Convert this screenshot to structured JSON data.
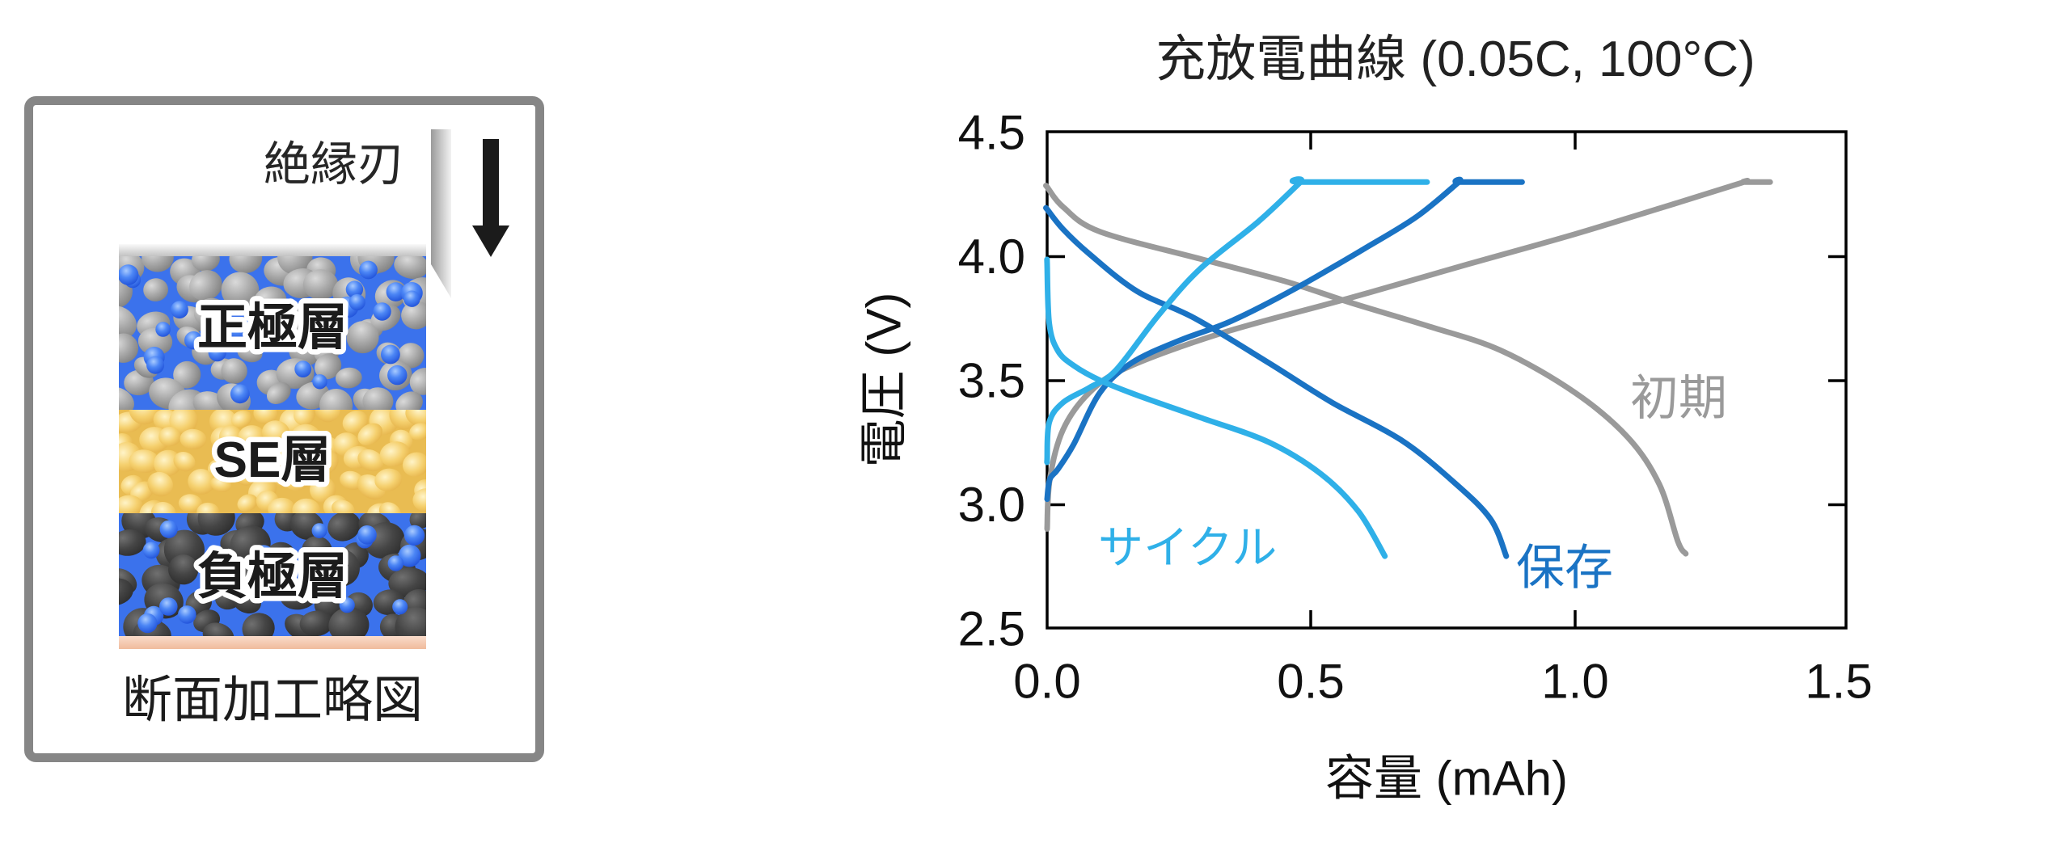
{
  "page": {
    "background": "#ffffff"
  },
  "diagram": {
    "blade_label": "絶縁刃",
    "caption": "断面加工略図",
    "box_border_color": "#868686",
    "blade_colors": [
      "#9a9a9a",
      "#cccccc",
      "#f2f2f2"
    ],
    "arrow_color": "#1b1b1b",
    "collector_colors": [
      "#fafafa",
      "#c2c2c2"
    ],
    "substrate_colors": [
      "#f9dccb",
      "#f0bb9c"
    ],
    "layers": {
      "cathode": {
        "label": "正極層",
        "bg": "#3B72EC",
        "particle": [
          "#dadada",
          "#a8a8a8",
          "#828282"
        ]
      },
      "se": {
        "label": "SE層",
        "bg": "#E9BC52",
        "particle": [
          "#fff4c8",
          "#f5d06e",
          "#e2ae44"
        ]
      },
      "anode": {
        "label": "負極層",
        "bg": "#3B72EC",
        "particle": [
          "#707070",
          "#454545",
          "#2f2f2f"
        ]
      }
    },
    "filler_sphere_colors": [
      "#a9cbff",
      "#4c86f5",
      "#1e4fd8"
    ]
  },
  "chart_data": {
    "type": "line",
    "title": "充放電曲線 (0.05C, 100°C)",
    "xlabel": "容量 (mAh)",
    "ylabel": "電圧 (V)",
    "xlim": [
      0,
      1.5
    ],
    "ylim": [
      2.5,
      4.5
    ],
    "grid": false,
    "legend_position": "in-plot-annotations",
    "xtick_labels": [
      "0.0",
      "0.5",
      "1.0",
      "1.5"
    ],
    "ytick_labels": [
      "2.5",
      "3.0",
      "3.5",
      "4.0",
      "4.5"
    ],
    "xticks": [
      0,
      0.5,
      1.0,
      1.5
    ],
    "yticks": [
      2.5,
      3.0,
      3.5,
      4.0,
      4.5
    ],
    "series": [
      {
        "name": "初期",
        "color": "#9A9A9A",
        "label_anchor": [
          1.105,
          3.36
        ],
        "charge": [
          [
            0,
            2.9
          ],
          [
            0.005,
            3.1
          ],
          [
            0.03,
            3.3
          ],
          [
            0.08,
            3.45
          ],
          [
            0.15,
            3.55
          ],
          [
            0.33,
            3.69
          ],
          [
            0.57,
            3.83
          ],
          [
            0.8,
            3.97
          ],
          [
            1.0,
            4.09
          ],
          [
            1.2,
            4.22
          ],
          [
            1.32,
            4.3
          ],
          [
            1.32,
            4.3
          ],
          [
            1.37,
            4.3
          ]
        ],
        "discharge": [
          [
            0,
            4.28
          ],
          [
            0,
            4.28
          ],
          [
            0.03,
            4.2
          ],
          [
            0.1,
            4.1
          ],
          [
            0.29,
            3.99
          ],
          [
            0.45,
            3.9
          ],
          [
            0.58,
            3.81
          ],
          [
            0.72,
            3.72
          ],
          [
            0.86,
            3.62
          ],
          [
            1.0,
            3.45
          ],
          [
            1.1,
            3.27
          ],
          [
            1.16,
            3.08
          ],
          [
            1.195,
            2.85
          ],
          [
            1.21,
            2.8
          ]
        ]
      },
      {
        "name": "保存",
        "color": "#1A73C4",
        "label_anchor": [
          0.888,
          2.675
        ],
        "charge": [
          [
            0,
            3.02
          ],
          [
            0.005,
            3.1
          ],
          [
            0.02,
            3.14
          ],
          [
            0.05,
            3.24
          ],
          [
            0.1,
            3.45
          ],
          [
            0.16,
            3.57
          ],
          [
            0.25,
            3.66
          ],
          [
            0.35,
            3.74
          ],
          [
            0.47,
            3.87
          ],
          [
            0.6,
            4.03
          ],
          [
            0.7,
            4.16
          ],
          [
            0.78,
            4.3
          ],
          [
            0.78,
            4.3
          ],
          [
            0.9,
            4.3
          ]
        ],
        "discharge": [
          [
            0,
            4.19
          ],
          [
            0,
            4.19
          ],
          [
            0.03,
            4.11
          ],
          [
            0.08,
            4.01
          ],
          [
            0.17,
            3.86
          ],
          [
            0.28,
            3.75
          ],
          [
            0.42,
            3.57
          ],
          [
            0.54,
            3.41
          ],
          [
            0.67,
            3.26
          ],
          [
            0.77,
            3.09
          ],
          [
            0.84,
            2.94
          ],
          [
            0.87,
            2.79
          ]
        ]
      },
      {
        "name": "サイクル",
        "color": "#2FB0E8",
        "label_anchor": [
          0.096,
          2.76
        ],
        "charge": [
          [
            0,
            3.18
          ],
          [
            0,
            3.18
          ],
          [
            0.004,
            3.33
          ],
          [
            0.03,
            3.41
          ],
          [
            0.08,
            3.47
          ],
          [
            0.13,
            3.54
          ],
          [
            0.21,
            3.76
          ],
          [
            0.29,
            3.95
          ],
          [
            0.4,
            4.14
          ],
          [
            0.48,
            4.3
          ],
          [
            0.48,
            4.3
          ],
          [
            0.72,
            4.3
          ]
        ],
        "discharge": [
          [
            0,
            3.97
          ],
          [
            0,
            3.97
          ],
          [
            0.004,
            3.73
          ],
          [
            0.02,
            3.62
          ],
          [
            0.05,
            3.56
          ],
          [
            0.1,
            3.5
          ],
          [
            0.17,
            3.44
          ],
          [
            0.29,
            3.35
          ],
          [
            0.42,
            3.25
          ],
          [
            0.52,
            3.12
          ],
          [
            0.59,
            2.97
          ],
          [
            0.64,
            2.79
          ]
        ]
      }
    ]
  }
}
